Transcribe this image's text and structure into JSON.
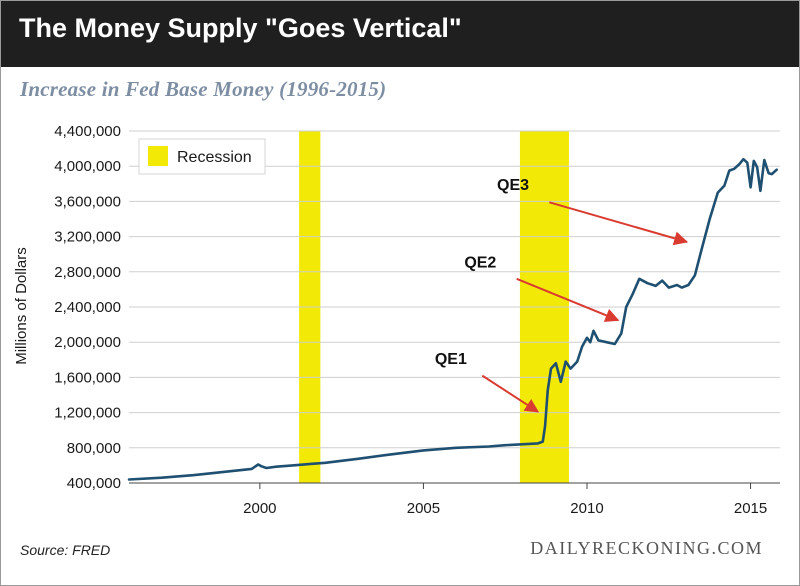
{
  "header": {
    "title": "The Money Supply \"Goes Vertical\"",
    "subtitle": "Increase in Fed Base Money (1996-2015)"
  },
  "footer": {
    "source": "Source: FRED",
    "credit": "DAILYRECKONING.COM"
  },
  "colors": {
    "line": "#1f5071",
    "recession": "#f2ea06",
    "arrow": "#d93b31",
    "grid": "#cfcfcf",
    "title_bg": "#1f1f1f"
  },
  "chart_data": {
    "type": "line",
    "title": "Increase in Fed Base Money (1996-2015)",
    "ylabel": "Millions of Dollars",
    "xlabel": "",
    "xlim": [
      1996.0,
      2015.9
    ],
    "ylim": [
      400000,
      4400000
    ],
    "x_ticks": [
      2000,
      2005,
      2010,
      2015
    ],
    "x_tick_labels": [
      "2000",
      "2005",
      "2010",
      "2015"
    ],
    "y_ticks": [
      400000,
      800000,
      1200000,
      1600000,
      2000000,
      2400000,
      2800000,
      3200000,
      3600000,
      4000000,
      4400000
    ],
    "y_tick_labels": [
      "400,000",
      "800,000",
      "1,200,000",
      "1,600,000",
      "2,000,000",
      "2,400,000",
      "2,800,000",
      "3,200,000",
      "3,600,000",
      "4,000,000",
      "4,400,000"
    ],
    "grid": "horizontal",
    "legend": {
      "position": "top-left",
      "entries": [
        "Recession"
      ]
    },
    "recessions": [
      {
        "start": 2001.2,
        "end": 2001.85
      },
      {
        "start": 2007.95,
        "end": 2009.45
      }
    ],
    "series": [
      {
        "values": [
          [
            1996.0,
            440000
          ],
          [
            1997.0,
            460000
          ],
          [
            1998.0,
            490000
          ],
          [
            1999.0,
            530000
          ],
          [
            1999.75,
            560000
          ],
          [
            1999.95,
            610000
          ],
          [
            2000.05,
            590000
          ],
          [
            2000.2,
            570000
          ],
          [
            2000.5,
            585000
          ],
          [
            2001.0,
            600000
          ],
          [
            2001.5,
            615000
          ],
          [
            2002.0,
            630000
          ],
          [
            2003.0,
            675000
          ],
          [
            2004.0,
            725000
          ],
          [
            2005.0,
            770000
          ],
          [
            2006.0,
            800000
          ],
          [
            2007.0,
            815000
          ],
          [
            2007.5,
            830000
          ],
          [
            2008.0,
            840000
          ],
          [
            2008.5,
            850000
          ],
          [
            2008.65,
            870000
          ],
          [
            2008.72,
            1050000
          ],
          [
            2008.8,
            1450000
          ],
          [
            2008.9,
            1700000
          ],
          [
            2009.05,
            1760000
          ],
          [
            2009.2,
            1550000
          ],
          [
            2009.35,
            1780000
          ],
          [
            2009.5,
            1700000
          ],
          [
            2009.7,
            1780000
          ],
          [
            2009.85,
            1950000
          ],
          [
            2010.0,
            2050000
          ],
          [
            2010.1,
            2000000
          ],
          [
            2010.2,
            2130000
          ],
          [
            2010.35,
            2020000
          ],
          [
            2010.6,
            2000000
          ],
          [
            2010.85,
            1980000
          ],
          [
            2011.05,
            2100000
          ],
          [
            2011.2,
            2400000
          ],
          [
            2011.4,
            2550000
          ],
          [
            2011.6,
            2720000
          ],
          [
            2011.85,
            2670000
          ],
          [
            2012.1,
            2640000
          ],
          [
            2012.3,
            2700000
          ],
          [
            2012.5,
            2620000
          ],
          [
            2012.75,
            2650000
          ],
          [
            2012.9,
            2620000
          ],
          [
            2013.1,
            2650000
          ],
          [
            2013.3,
            2760000
          ],
          [
            2013.5,
            3050000
          ],
          [
            2013.75,
            3400000
          ],
          [
            2014.0,
            3700000
          ],
          [
            2014.2,
            3780000
          ],
          [
            2014.35,
            3950000
          ],
          [
            2014.5,
            3970000
          ],
          [
            2014.65,
            4020000
          ],
          [
            2014.78,
            4080000
          ],
          [
            2014.9,
            4040000
          ],
          [
            2015.0,
            3760000
          ],
          [
            2015.1,
            4060000
          ],
          [
            2015.2,
            3990000
          ],
          [
            2015.3,
            3720000
          ],
          [
            2015.42,
            4070000
          ],
          [
            2015.55,
            3920000
          ],
          [
            2015.65,
            3910000
          ],
          [
            2015.8,
            3960000
          ]
        ]
      }
    ],
    "annotations": [
      {
        "label": "QE1",
        "text_x": 2005.35,
        "text_y": 1750000,
        "arrow_from": [
          2006.8,
          1620000
        ],
        "arrow_to": [
          2008.5,
          1210000
        ]
      },
      {
        "label": "QE2",
        "text_x": 2006.25,
        "text_y": 2850000,
        "arrow_from": [
          2007.85,
          2720000
        ],
        "arrow_to": [
          2010.95,
          2250000
        ]
      },
      {
        "label": "QE3",
        "text_x": 2007.25,
        "text_y": 3730000,
        "arrow_from": [
          2008.85,
          3590000
        ],
        "arrow_to": [
          2013.05,
          3140000
        ]
      }
    ]
  }
}
